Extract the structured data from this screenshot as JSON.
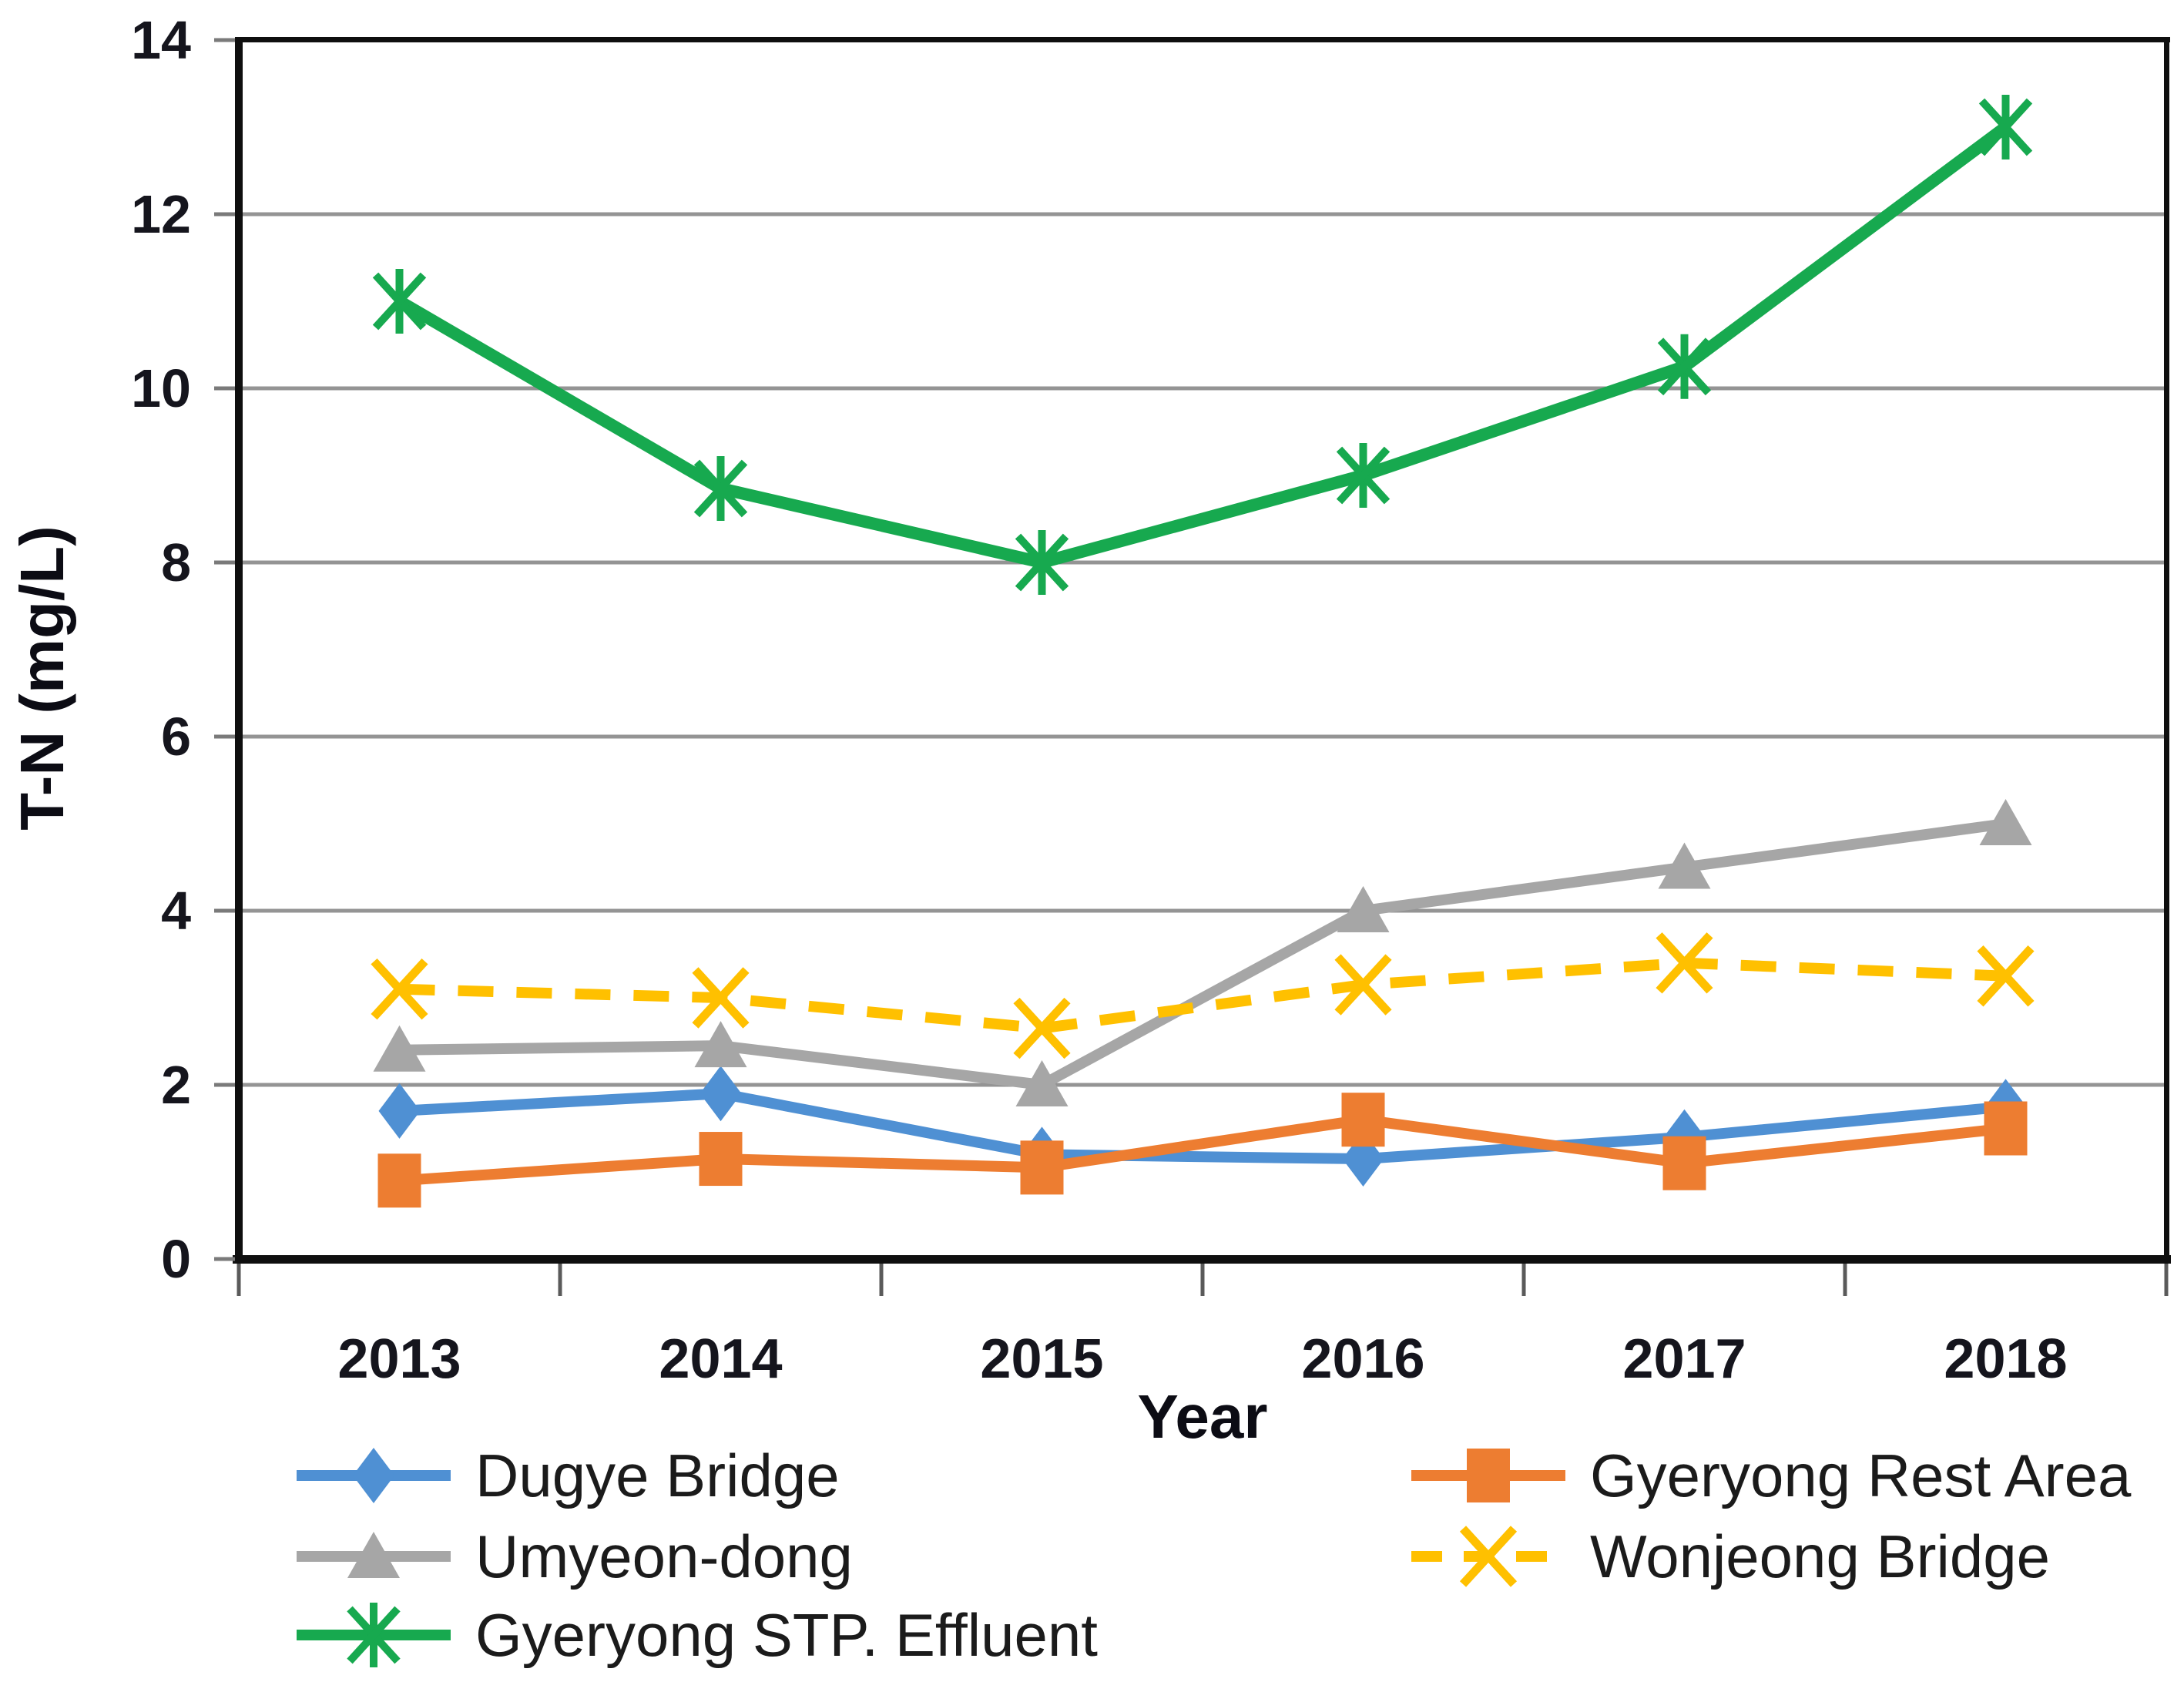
{
  "figure": {
    "background": "#ffffff",
    "axis_color": "#0f0f0f",
    "gridline_color": "#949494",
    "x_tick_color": "#5a5a5a",
    "y_tick_color": "#7a7a7a",
    "tick_label_color": "#15151d"
  },
  "chart_data": {
    "type": "line",
    "title": "",
    "xlabel": "Year",
    "ylabel": "T-N (mg/L)",
    "categories": [
      "2013",
      "2014",
      "2015",
      "2016",
      "2017",
      "2018"
    ],
    "y_ticks": [
      0,
      2,
      4,
      6,
      8,
      10,
      12,
      14
    ],
    "ylim": [
      0,
      14
    ],
    "grid": "horizontal",
    "legend_position": "bottom",
    "series": [
      {
        "name": "Dugye Bridge",
        "color": "#4F90D3",
        "marker": "diamond",
        "line": "solid",
        "values": [
          1.7,
          1.9,
          1.2,
          1.15,
          1.4,
          1.75
        ]
      },
      {
        "name": "Gyeryong Rest Area",
        "color": "#ED7D31",
        "marker": "square",
        "line": "solid",
        "values": [
          0.9,
          1.15,
          1.05,
          1.6,
          1.1,
          1.5
        ]
      },
      {
        "name": "Umyeon-dong",
        "color": "#A6A6A6",
        "marker": "triangle",
        "line": "solid",
        "values": [
          2.4,
          2.45,
          2.0,
          4.0,
          4.5,
          5.0
        ]
      },
      {
        "name": "Wonjeong Bridge",
        "color": "#FFC000",
        "marker": "x",
        "line": "dashed",
        "values": [
          3.1,
          3.0,
          2.65,
          3.15,
          3.4,
          3.25
        ]
      },
      {
        "name": "Gyeryong STP. Effluent",
        "color": "#17A94F",
        "marker": "asterisk",
        "line": "solid",
        "values": [
          11.0,
          8.85,
          8.0,
          9.0,
          10.25,
          13.0
        ]
      }
    ]
  }
}
